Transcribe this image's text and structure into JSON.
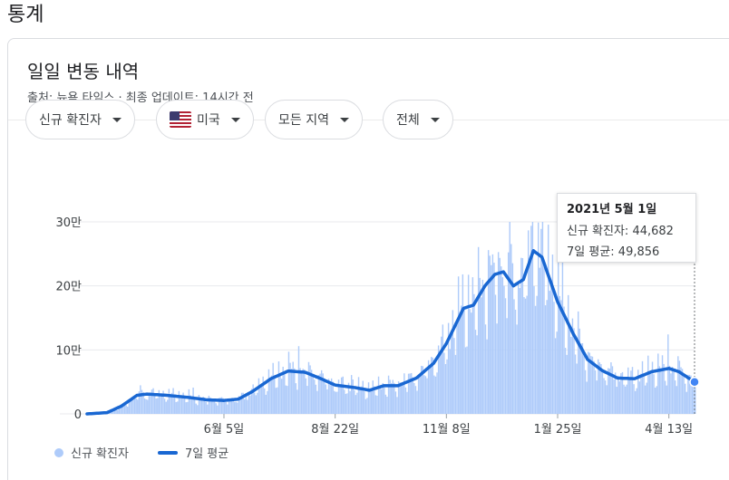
{
  "section_title": "통계",
  "card": {
    "title": "일일 변동 내역",
    "source_prefix": "출처: ",
    "source_name": "뉴욕 타임스",
    "source_suffix": " · 최종 업데이트: 14시간 전"
  },
  "filters": [
    {
      "label": "신규 확진자",
      "icon": "",
      "flag": false
    },
    {
      "label": "미국",
      "icon": "us-flag-icon",
      "flag": true
    },
    {
      "label": "모든 지역",
      "icon": "",
      "flag": false
    },
    {
      "label": "전체",
      "icon": "",
      "flag": false
    }
  ],
  "tooltip": {
    "date": "2021년 5월 1일",
    "row1": "신규 확진자: 44,682",
    "row2": "7일 평균: 49,856"
  },
  "legend": {
    "cases_label": "신규 확진자",
    "avg_label": "7일 평균"
  },
  "colors": {
    "bar": "#aecbfa",
    "line": "#1967d2",
    "grid": "#e8eaed"
  },
  "chart_data": {
    "type": "area",
    "xlabel": "",
    "ylabel": "",
    "y_ticks": [
      "0",
      "10만",
      "20만",
      "30만"
    ],
    "ylim": [
      0,
      300000
    ],
    "x_ticks": [
      "6월 5일",
      "8월 22일",
      "11월 8일",
      "1월 25일",
      "4월 13일"
    ],
    "grid": true,
    "legend_position": "bottom-left",
    "series": [
      {
        "name": "7일 평균",
        "kind": "line",
        "points": [
          [
            "2020-03-01",
            0
          ],
          [
            "2020-03-15",
            2000
          ],
          [
            "2020-03-25",
            12000
          ],
          [
            "2020-04-05",
            29000
          ],
          [
            "2020-04-12",
            31000
          ],
          [
            "2020-04-26",
            29000
          ],
          [
            "2020-05-10",
            26000
          ],
          [
            "2020-05-24",
            22000
          ],
          [
            "2020-06-05",
            21000
          ],
          [
            "2020-06-15",
            23000
          ],
          [
            "2020-06-25",
            35000
          ],
          [
            "2020-07-08",
            55000
          ],
          [
            "2020-07-20",
            67000
          ],
          [
            "2020-08-01",
            65000
          ],
          [
            "2020-08-12",
            55000
          ],
          [
            "2020-08-22",
            45000
          ],
          [
            "2020-09-05",
            41000
          ],
          [
            "2020-09-15",
            37000
          ],
          [
            "2020-09-25",
            44000
          ],
          [
            "2020-10-05",
            44000
          ],
          [
            "2020-10-18",
            56000
          ],
          [
            "2020-10-30",
            79000
          ],
          [
            "2020-11-08",
            110000
          ],
          [
            "2020-11-20",
            165000
          ],
          [
            "2020-11-27",
            170000
          ],
          [
            "2020-12-05",
            200000
          ],
          [
            "2020-12-12",
            218000
          ],
          [
            "2020-12-18",
            222000
          ],
          [
            "2020-12-25",
            200000
          ],
          [
            "2021-01-01",
            210000
          ],
          [
            "2021-01-08",
            255000
          ],
          [
            "2021-01-14",
            245000
          ],
          [
            "2021-01-25",
            175000
          ],
          [
            "2021-02-05",
            125000
          ],
          [
            "2021-02-15",
            85000
          ],
          [
            "2021-02-25",
            68000
          ],
          [
            "2021-03-08",
            56000
          ],
          [
            "2021-03-20",
            55000
          ],
          [
            "2021-04-01",
            66000
          ],
          [
            "2021-04-13",
            71000
          ],
          [
            "2021-04-20",
            66000
          ],
          [
            "2021-05-01",
            49856
          ]
        ]
      },
      {
        "name": "신규 확진자",
        "kind": "bars",
        "note": "daily values follow the 7-day average with weekly fluctuation"
      }
    ]
  }
}
